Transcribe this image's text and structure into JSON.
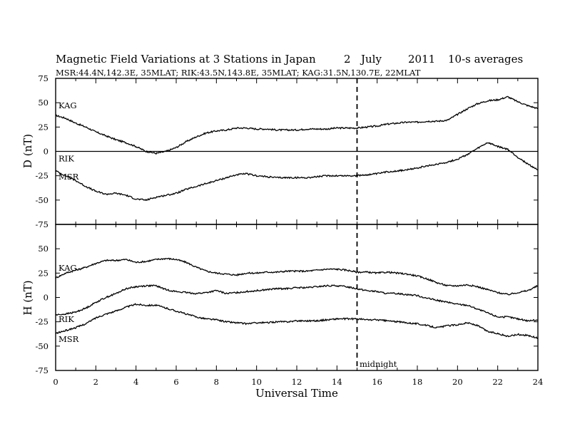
{
  "title": {
    "main": "Magnetic Field Variations at 3 Stations in Japan",
    "day": "2",
    "month": "July",
    "year": "2011",
    "averaging": "10-s averages"
  },
  "subtitle": "MSR:44.4N,142.3E, 35MLAT;  RIK:43.5N,143.8E, 35MLAT;  KAG:31.5N,130.7E, 22MLAT",
  "annotation": "midnight",
  "colors": {
    "line": "#000000",
    "background": "#ffffff"
  },
  "chart_data": [
    {
      "type": "line",
      "panel": "D",
      "xlabel": "Universal Time",
      "ylabel": "D (nT)",
      "xlim": [
        0,
        24
      ],
      "ylim": [
        -75,
        75
      ],
      "xticks": [
        0,
        2,
        4,
        6,
        8,
        10,
        12,
        14,
        16,
        18,
        20,
        22,
        24
      ],
      "yticks": [
        -75,
        -50,
        -25,
        0,
        25,
        50,
        75
      ],
      "zero_line": true,
      "vline": {
        "x": 15,
        "label": "midnight"
      },
      "series": [
        {
          "name": "KAG",
          "x": [
            0,
            0.5,
            1,
            1.5,
            2,
            2.5,
            3,
            3.5,
            4,
            4.5,
            5,
            5.5,
            6,
            6.5,
            7,
            7.5,
            8,
            8.5,
            9,
            9.5,
            10,
            10.5,
            11,
            11.5,
            12,
            12.5,
            13,
            13.5,
            14,
            14.5,
            15,
            15.5,
            16,
            16.5,
            17,
            17.5,
            18,
            18.5,
            19,
            19.5,
            20,
            20.5,
            21,
            21.5,
            22,
            22.5,
            23,
            23.5,
            24
          ],
          "y": [
            37,
            34,
            29,
            25,
            20,
            16,
            12,
            9,
            5,
            0,
            -2,
            0,
            4,
            10,
            15,
            19,
            21,
            22,
            24,
            24,
            23,
            23,
            22,
            22,
            22,
            23,
            23,
            23,
            24,
            24,
            24,
            25,
            26,
            28,
            29,
            30,
            30,
            31,
            31,
            32,
            38,
            44,
            49,
            52,
            53,
            56,
            51,
            47,
            44
          ]
        },
        {
          "name": "MSR",
          "x": [
            0,
            0.5,
            1,
            1.5,
            2,
            2.5,
            3,
            3.5,
            4,
            4.5,
            5,
            5.5,
            6,
            6.5,
            7,
            7.5,
            8,
            8.5,
            9,
            9.5,
            10,
            10.5,
            11,
            11.5,
            12,
            12.5,
            13,
            13.5,
            14,
            14.5,
            15,
            15.5,
            16,
            16.5,
            17,
            17.5,
            18,
            18.5,
            19,
            19.5,
            20,
            20.5,
            21,
            21.5,
            22,
            22.5,
            23,
            23.5,
            24
          ],
          "y": [
            -20,
            -25,
            -30,
            -36,
            -41,
            -44,
            -43,
            -45,
            -49,
            -50,
            -47,
            -45,
            -43,
            -39,
            -36,
            -33,
            -30,
            -27,
            -24,
            -23,
            -25,
            -26,
            -27,
            -27,
            -27,
            -27,
            -26,
            -25,
            -25,
            -25,
            -25,
            -24,
            -23,
            -21,
            -20,
            -19,
            -17,
            -15,
            -13,
            -11,
            -8,
            -3,
            3,
            9,
            5,
            2,
            -6,
            -13,
            -19
          ]
        }
      ]
    },
    {
      "type": "line",
      "panel": "H",
      "xlabel": "Universal Time",
      "ylabel": "H (nT)",
      "xlim": [
        0,
        24
      ],
      "ylim": [
        -75,
        75
      ],
      "xticks": [
        0,
        2,
        4,
        6,
        8,
        10,
        12,
        14,
        16,
        18,
        20,
        22,
        24
      ],
      "yticks": [
        -75,
        -50,
        -25,
        0,
        25,
        50,
        75
      ],
      "vline": {
        "x": 15,
        "label": "midnight"
      },
      "series": [
        {
          "name": "KAG",
          "x": [
            0,
            0.5,
            1,
            1.5,
            2,
            2.5,
            3,
            3.5,
            4,
            4.5,
            5,
            5.5,
            6,
            6.5,
            7,
            7.5,
            8,
            8.5,
            9,
            9.5,
            10,
            10.5,
            11,
            11.5,
            12,
            12.5,
            13,
            13.5,
            14,
            14.5,
            15,
            15.5,
            16,
            16.5,
            17,
            17.5,
            18,
            18.5,
            19,
            19.5,
            20,
            20.5,
            21,
            21.5,
            22,
            22.5,
            23,
            23.5,
            24
          ],
          "y": [
            20,
            25,
            28,
            31,
            35,
            38,
            38,
            39,
            36,
            37,
            39,
            40,
            39,
            36,
            31,
            27,
            25,
            24,
            23,
            25,
            25,
            26,
            26,
            27,
            27,
            27,
            28,
            29,
            29,
            28,
            26,
            26,
            25,
            26,
            25,
            24,
            22,
            19,
            15,
            12,
            12,
            13,
            11,
            8,
            5,
            3,
            5,
            7,
            12
          ]
        },
        {
          "name": "RIK",
          "x": [
            0,
            0.5,
            1,
            1.5,
            2,
            2.5,
            3,
            3.5,
            4,
            4.5,
            5,
            5.5,
            6,
            6.5,
            7,
            7.5,
            8,
            8.5,
            9,
            9.5,
            10,
            10.5,
            11,
            11.5,
            12,
            12.5,
            13,
            13.5,
            14,
            14.5,
            15,
            15.5,
            16,
            16.5,
            17,
            17.5,
            18,
            18.5,
            19,
            19.5,
            20,
            20.5,
            21,
            21.5,
            22,
            22.5,
            23,
            23.5,
            24
          ],
          "y": [
            -18,
            -17,
            -15,
            -11,
            -5,
            0,
            4,
            9,
            11,
            12,
            12,
            8,
            6,
            5,
            4,
            5,
            7,
            4,
            5,
            6,
            7,
            8,
            9,
            9,
            10,
            10,
            11,
            12,
            12,
            11,
            9,
            7,
            6,
            4,
            4,
            3,
            2,
            -1,
            -3,
            -5,
            -7,
            -8,
            -12,
            -16,
            -20,
            -20,
            -22,
            -24,
            -23
          ]
        },
        {
          "name": "MSR",
          "x": [
            0,
            0.5,
            1,
            1.5,
            2,
            2.5,
            3,
            3.5,
            4,
            4.5,
            5,
            5.5,
            6,
            6.5,
            7,
            7.5,
            8,
            8.5,
            9,
            9.5,
            10,
            10.5,
            11,
            11.5,
            12,
            12.5,
            13,
            13.5,
            14,
            14.5,
            15,
            15.5,
            16,
            16.5,
            17,
            17.5,
            18,
            18.5,
            19,
            19.5,
            20,
            20.5,
            21,
            21.5,
            22,
            22.5,
            23,
            23.5,
            24
          ],
          "y": [
            -37,
            -34,
            -31,
            -27,
            -21,
            -17,
            -14,
            -10,
            -7,
            -8,
            -8,
            -11,
            -14,
            -17,
            -20,
            -22,
            -23,
            -25,
            -26,
            -27,
            -26,
            -26,
            -25,
            -25,
            -24,
            -24,
            -24,
            -23,
            -22,
            -22,
            -22,
            -23,
            -23,
            -24,
            -25,
            -26,
            -27,
            -29,
            -31,
            -29,
            -28,
            -26,
            -29,
            -35,
            -37,
            -40,
            -38,
            -39,
            -42
          ]
        }
      ]
    }
  ]
}
